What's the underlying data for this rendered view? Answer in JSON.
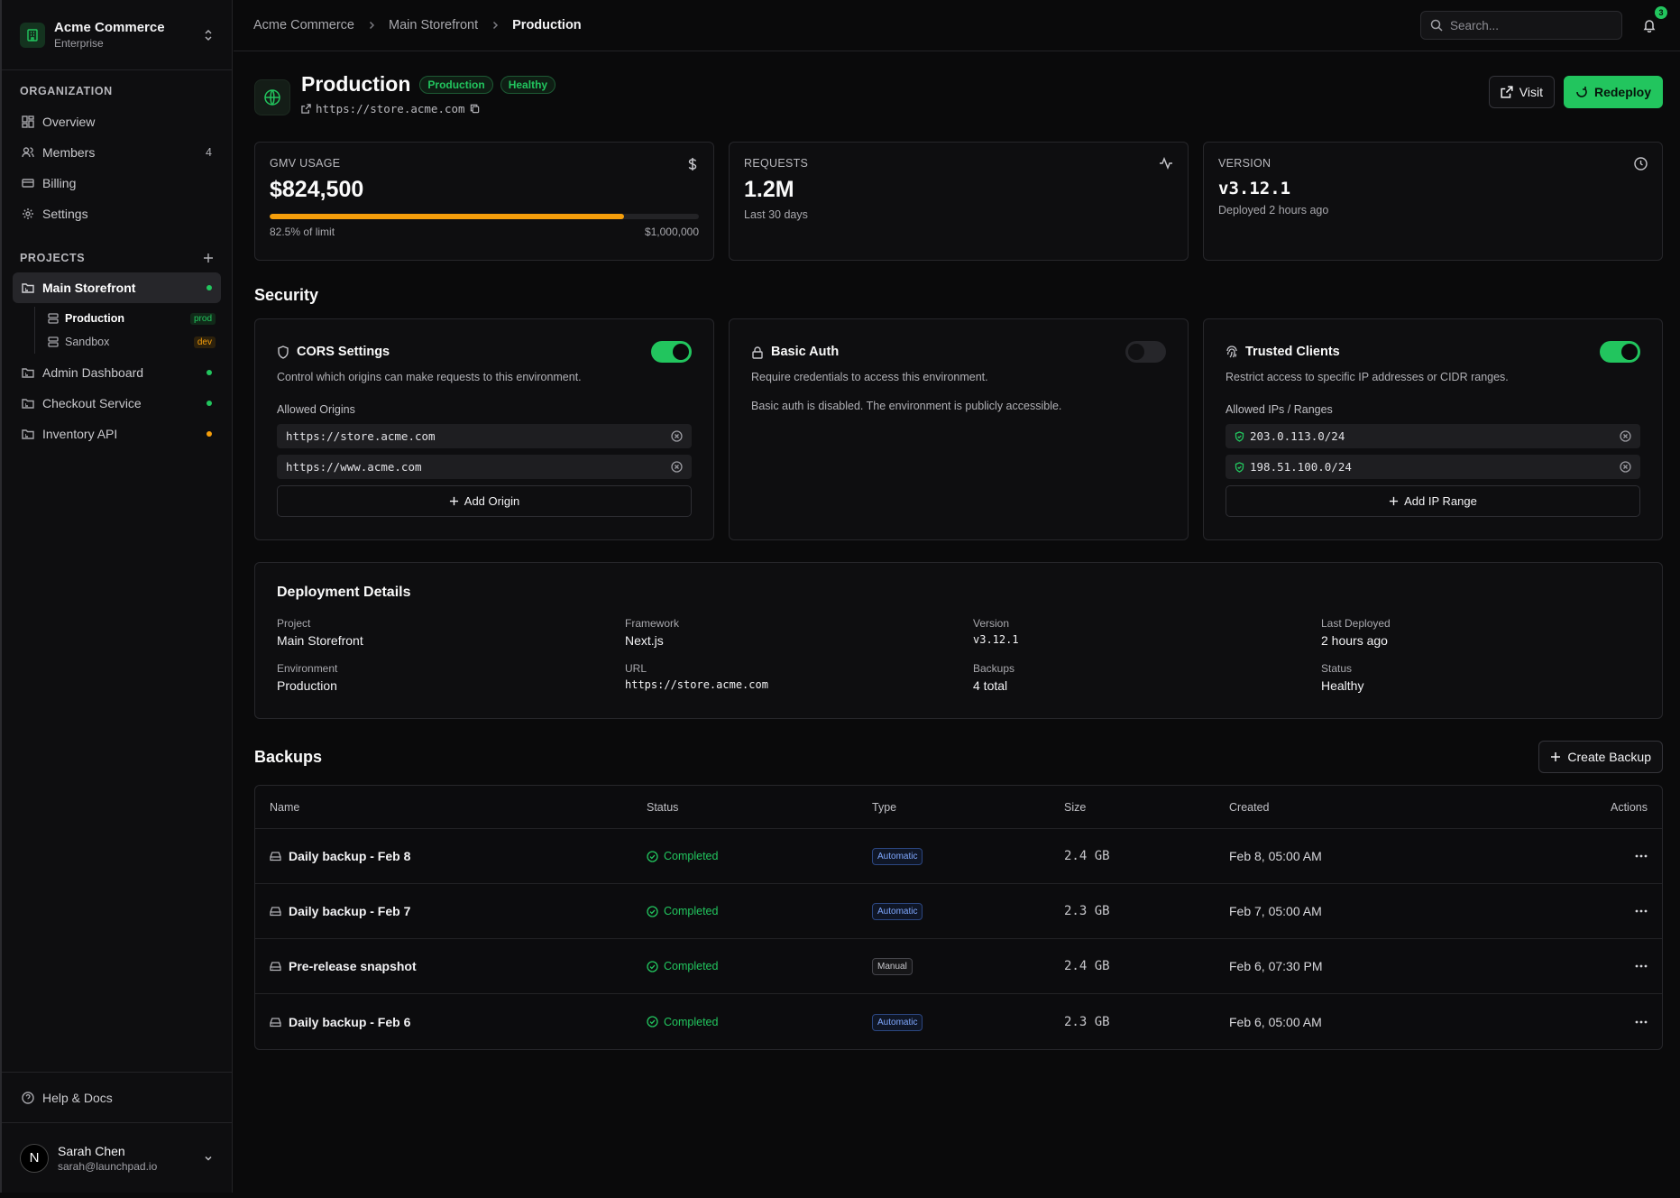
{
  "org": {
    "name": "Acme Commerce",
    "plan": "Enterprise"
  },
  "sidebar": {
    "org_section": "ORGANIZATION",
    "org_items": [
      {
        "label": "Overview",
        "icon": "grid-icon",
        "count": ""
      },
      {
        "label": "Members",
        "icon": "users-icon",
        "count": "4"
      },
      {
        "label": "Billing",
        "icon": "credit-card-icon",
        "count": ""
      },
      {
        "label": "Settings",
        "icon": "gear-icon",
        "count": ""
      }
    ],
    "projects_section": "PROJECTS",
    "projects": [
      {
        "label": "Main Storefront",
        "status_color": "#22c55e"
      },
      {
        "label": "Admin Dashboard",
        "status_color": "#22c55e"
      },
      {
        "label": "Checkout Service",
        "status_color": "#22c55e"
      },
      {
        "label": "Inventory API",
        "status_color": "#f59e0b"
      }
    ],
    "environments": [
      {
        "label": "Production",
        "badge": "prod"
      },
      {
        "label": "Sandbox",
        "badge": "dev"
      }
    ],
    "help": "Help & Docs",
    "user": {
      "initial": "N",
      "name": "Sarah Chen",
      "email": "sarah@launchpad.io"
    }
  },
  "topbar": {
    "breadcrumbs": [
      "Acme Commerce",
      "Main Storefront",
      "Production"
    ],
    "search_placeholder": "Search...",
    "notification_count": "3"
  },
  "header": {
    "title": "Production",
    "badges": [
      "Production",
      "Healthy"
    ],
    "url": "https://store.acme.com",
    "visit_label": "Visit",
    "redeploy_label": "Redeploy"
  },
  "stats": {
    "gmv": {
      "label": "GMV USAGE",
      "value": "$824,500",
      "percent_label": "82.5% of limit",
      "limit": "$1,000,000",
      "fill_fraction": 0.825
    },
    "requests": {
      "label": "REQUESTS",
      "value": "1.2M",
      "sub": "Last 30 days"
    },
    "version": {
      "label": "VERSION",
      "value": "v3.12.1",
      "sub": "Deployed 2 hours ago"
    }
  },
  "security": {
    "title": "Security",
    "cors": {
      "name": "CORS Settings",
      "enabled": true,
      "desc": "Control which origins can make requests to this environment.",
      "list_label": "Allowed Origins",
      "items": [
        "https://store.acme.com",
        "https://www.acme.com"
      ],
      "add_label": "Add Origin"
    },
    "basic_auth": {
      "name": "Basic Auth",
      "enabled": false,
      "desc": "Require credentials to access this environment.",
      "note": "Basic auth is disabled. The environment is publicly accessible."
    },
    "trusted": {
      "name": "Trusted Clients",
      "enabled": true,
      "desc": "Restrict access to specific IP addresses or CIDR ranges.",
      "list_label": "Allowed IPs / Ranges",
      "items": [
        "203.0.113.0/24",
        "198.51.100.0/24"
      ],
      "add_label": "Add IP Range"
    }
  },
  "deployment": {
    "title": "Deployment Details",
    "fields": [
      {
        "label": "Project",
        "value": "Main Storefront",
        "mono": false
      },
      {
        "label": "Framework",
        "value": "Next.js",
        "mono": false
      },
      {
        "label": "Version",
        "value": "v3.12.1",
        "mono": true
      },
      {
        "label": "Last Deployed",
        "value": "2 hours ago",
        "mono": false
      },
      {
        "label": "Environment",
        "value": "Production",
        "mono": false
      },
      {
        "label": "URL",
        "value": "https://store.acme.com",
        "mono": true
      },
      {
        "label": "Backups",
        "value": "4 total",
        "mono": false
      },
      {
        "label": "Status",
        "value": "Healthy",
        "mono": false
      }
    ]
  },
  "backups": {
    "title": "Backups",
    "create_label": "Create Backup",
    "columns": [
      "Name",
      "Status",
      "Type",
      "Size",
      "Created",
      "Actions"
    ],
    "rows": [
      {
        "name": "Daily backup - Feb 8",
        "status": "Completed",
        "type": "Automatic",
        "size": "2.4 GB",
        "created": "Feb 8, 05:00 AM"
      },
      {
        "name": "Daily backup - Feb 7",
        "status": "Completed",
        "type": "Automatic",
        "size": "2.3 GB",
        "created": "Feb 7, 05:00 AM"
      },
      {
        "name": "Pre-release snapshot",
        "status": "Completed",
        "type": "Manual",
        "size": "2.4 GB",
        "created": "Feb 6, 07:30 PM"
      },
      {
        "name": "Daily backup - Feb 6",
        "status": "Completed",
        "type": "Automatic",
        "size": "2.3 GB",
        "created": "Feb 6, 05:00 AM"
      }
    ]
  },
  "colors": {
    "accent": "#22c55e",
    "warning": "#f59e0b",
    "info": "#7fa8ff"
  }
}
